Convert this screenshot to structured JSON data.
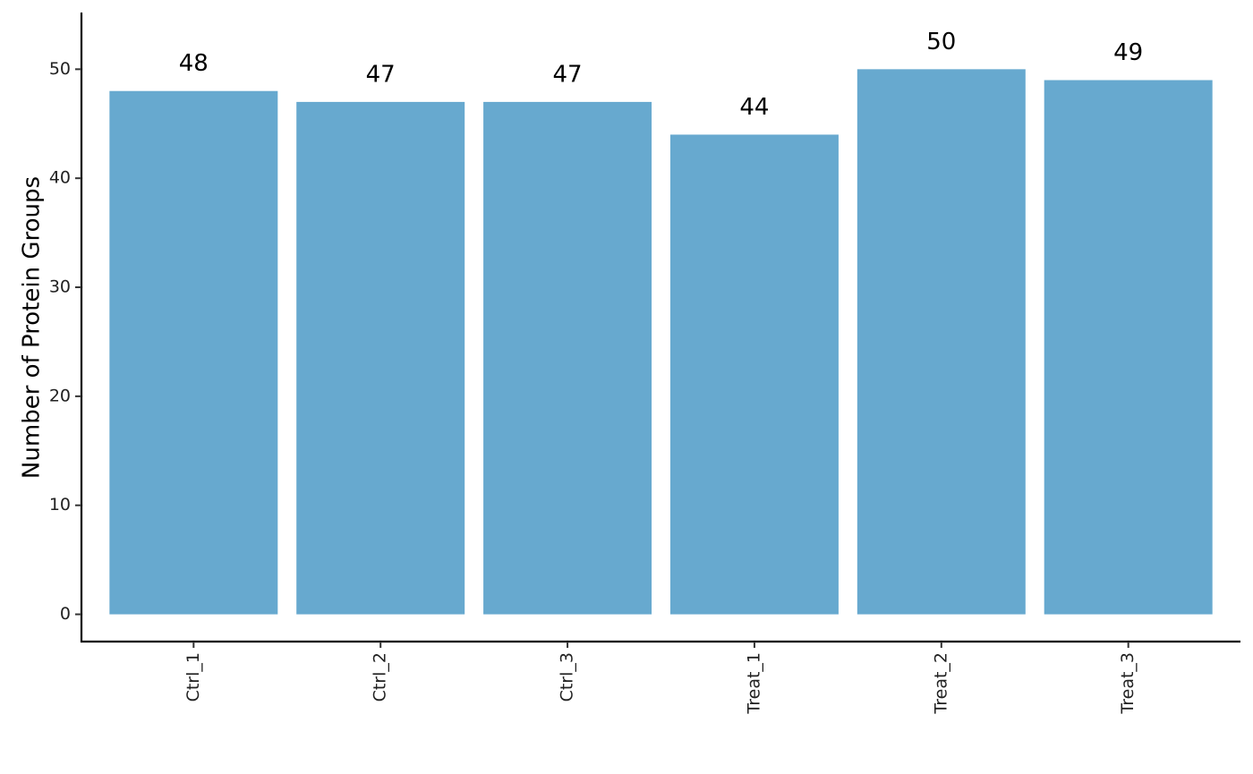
{
  "chart_data": {
    "type": "bar",
    "y_label": "Number of Protein Groups",
    "categories": [
      "Ctrl_1",
      "Ctrl_2",
      "Ctrl_3",
      "Treat_1",
      "Treat_2",
      "Treat_3"
    ],
    "values": [
      48,
      47,
      47,
      44,
      50,
      49
    ],
    "color": "#67a9cf",
    "ylim": [
      -2.5,
      55.2
    ],
    "yticks": [
      0,
      10,
      20,
      30,
      40,
      50
    ],
    "grid": false
  }
}
